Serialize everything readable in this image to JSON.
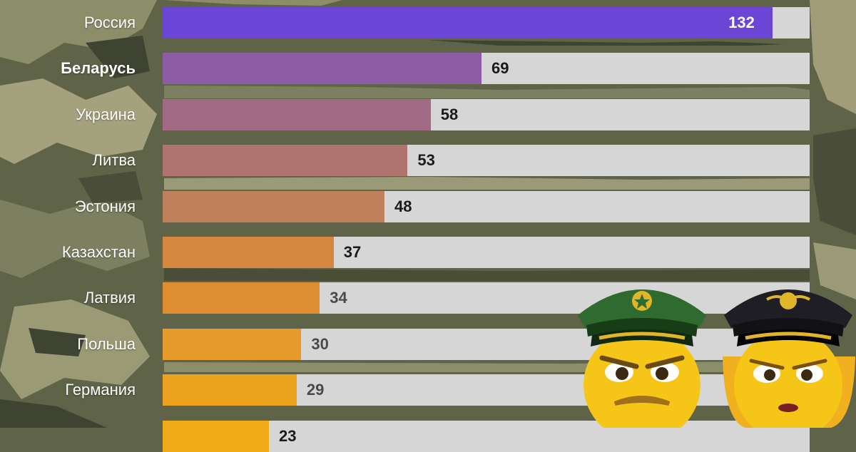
{
  "chart_data": {
    "type": "bar",
    "orientation": "horizontal",
    "categories": [
      "Россия",
      "Беларусь",
      "Украина",
      "Литва",
      "Эстония",
      "Казахстан",
      "Латвия",
      "Польша",
      "Германия",
      ""
    ],
    "values": [
      132,
      69,
      58,
      53,
      48,
      37,
      34,
      30,
      29,
      23
    ],
    "bold_categories": [
      "Беларусь"
    ],
    "muted_value_labels": [
      34,
      30,
      29
    ],
    "bar_colors": [
      "#6a45d6",
      "#8e5ba5",
      "#a36a86",
      "#b07470",
      "#c1805c",
      "#d4883f",
      "#df8d31",
      "#e69a2a",
      "#eca21f",
      "#f1aa18"
    ],
    "track_color": "#d6d6d6",
    "xlim": [
      0,
      140
    ],
    "grid": false,
    "legend": "none"
  },
  "decorations": {
    "background": "camouflage",
    "emoji": [
      "male-military-officer-icon",
      "female-military-officer-icon"
    ]
  }
}
